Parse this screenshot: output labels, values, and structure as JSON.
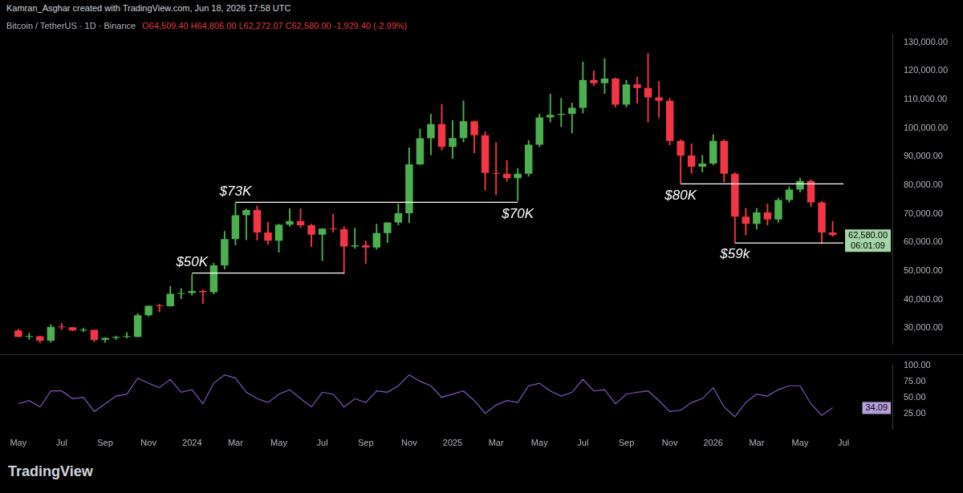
{
  "header": {
    "credit": "Kamran_Asghar created with TradingView.com, Jun 18, 2026 17:58 UTC"
  },
  "brand": "TradingView",
  "chart_data": [
    {
      "type": "candlestick",
      "title": "Bitcoin / TetherUS · 1D · Binance",
      "subtitle": "O64,509.40 H64,806.00 L62,272.07 C62,580.00 -1,929.40 (-2.99%)",
      "categories": [
        "May",
        null,
        null,
        null,
        "Jul",
        null,
        null,
        null,
        "Sep",
        null,
        null,
        null,
        "Nov",
        null,
        null,
        null,
        "2024",
        null,
        null,
        null,
        "Mar",
        null,
        null,
        null,
        "May",
        null,
        null,
        null,
        "Jul",
        null,
        null,
        null,
        "Sep",
        null,
        null,
        null,
        "Nov",
        null,
        null,
        null,
        "2025",
        null,
        null,
        null,
        "Mar",
        null,
        null,
        null,
        "May",
        null,
        null,
        null,
        "Jul",
        null,
        null,
        null,
        "Sep",
        null,
        null,
        null,
        "Nov",
        null,
        null,
        null,
        "2026",
        null,
        null,
        null,
        "Mar",
        null,
        null,
        null,
        "May",
        null,
        null,
        null,
        "Jul",
        null,
        null,
        null,
        null
      ],
      "open": [
        29200,
        27000,
        27200,
        25600,
        30500,
        30300,
        29200,
        29400,
        25900,
        26600,
        27000,
        27000,
        34500,
        37800,
        37700,
        42000,
        42300,
        43000,
        42600,
        52000,
        61200,
        69500,
        71300,
        63500,
        60600,
        66200,
        67500,
        66000,
        62700,
        64800,
        64600,
        58600,
        59000,
        58200,
        63300,
        67000,
        70200,
        87300,
        96400,
        101400,
        93400,
        96500,
        102400,
        97500,
        84300,
        84000,
        82500,
        84000,
        94200,
        103700,
        104600,
        105000,
        107100,
        116800,
        115700,
        117300,
        108200,
        115300,
        114000,
        110700,
        109500,
        95500,
        90400,
        86500,
        87600,
        95500,
        84000,
        69000,
        66500,
        70500,
        68000,
        74800,
        78500,
        81500,
        74000,
        63500,
        null,
        null,
        null,
        null,
        null
      ],
      "high": [
        29800,
        28400,
        27400,
        31400,
        31800,
        30400,
        30200,
        29500,
        26800,
        27400,
        28600,
        35200,
        38000,
        38500,
        44700,
        44000,
        48900,
        43500,
        52800,
        64000,
        73800,
        71800,
        72800,
        67200,
        66500,
        71900,
        71900,
        66500,
        65000,
        70000,
        65600,
        65000,
        60600,
        66500,
        67000,
        73600,
        93200,
        99800,
        105000,
        108300,
        102700,
        109600,
        102500,
        98800,
        95000,
        88800,
        86000,
        95700,
        105000,
        112000,
        110500,
        108800,
        123200,
        120200,
        124400,
        117600,
        116800,
        117900,
        126200,
        116400,
        110500,
        96000,
        94600,
        90500,
        97800,
        96000,
        84500,
        72000,
        72000,
        73500,
        75500,
        79500,
        82600,
        82000,
        74500,
        67500,
        null,
        null,
        null,
        null,
        null
      ],
      "low": [
        26800,
        26000,
        24800,
        25000,
        29500,
        29000,
        28700,
        25200,
        24900,
        26000,
        26500,
        26800,
        34100,
        35600,
        37600,
        40200,
        41500,
        38500,
        41900,
        50600,
        59000,
        60800,
        60700,
        59200,
        56500,
        65500,
        65000,
        58400,
        53500,
        63500,
        49000,
        57800,
        52500,
        57500,
        59800,
        66000,
        66800,
        87000,
        90500,
        92200,
        89200,
        95000,
        91200,
        78200,
        76600,
        81200,
        74500,
        83000,
        93300,
        102000,
        100400,
        98200,
        105100,
        114700,
        112000,
        107300,
        107300,
        108600,
        102000,
        103500,
        94000,
        80600,
        84000,
        84500,
        87000,
        81000,
        59800,
        62500,
        64500,
        66000,
        67000,
        74000,
        77500,
        72500,
        59500,
        62000,
        null,
        null,
        null,
        null,
        null
      ],
      "close": [
        27000,
        27200,
        25600,
        30500,
        30300,
        29200,
        29400,
        25900,
        26600,
        27000,
        27000,
        34500,
        37800,
        37700,
        42000,
        42300,
        43000,
        42600,
        52000,
        61200,
        69500,
        71300,
        63500,
        60600,
        66200,
        67500,
        66000,
        62700,
        64800,
        64600,
        58600,
        59000,
        58200,
        63300,
        67000,
        70200,
        87300,
        96400,
        101400,
        93400,
        96500,
        102400,
        97500,
        84300,
        84000,
        82500,
        84000,
        94200,
        103700,
        104600,
        105000,
        107100,
        116800,
        115700,
        117300,
        108200,
        115300,
        114000,
        110700,
        109500,
        95500,
        90400,
        86500,
        87600,
        95500,
        84000,
        69000,
        66500,
        70500,
        68000,
        74800,
        78500,
        81500,
        74000,
        63500,
        62580,
        null,
        null,
        null,
        null,
        null
      ],
      "colors": [
        "#f23645",
        "#4caf50",
        "#f23645",
        "#4caf50",
        "#f23645",
        "#f23645",
        "#4caf50",
        "#f23645",
        "#4caf50",
        "#4caf50",
        "#4caf50",
        "#4caf50",
        "#4caf50",
        "#f23645",
        "#4caf50",
        "#4caf50",
        "#4caf50",
        "#f23645",
        "#4caf50",
        "#4caf50",
        "#4caf50",
        "#4caf50",
        "#f23645",
        "#f23645",
        "#4caf50",
        "#4caf50",
        "#f23645",
        "#f23645",
        "#4caf50",
        "#f23645",
        "#f23645",
        "#4caf50",
        "#f23645",
        "#4caf50",
        "#4caf50",
        "#4caf50",
        "#4caf50",
        "#4caf50",
        "#4caf50",
        "#f23645",
        "#4caf50",
        "#4caf50",
        "#f23645",
        "#f23645",
        "#f23645",
        "#f23645",
        "#4caf50",
        "#4caf50",
        "#4caf50",
        "#4caf50",
        "#4caf50",
        "#4caf50",
        "#4caf50",
        "#f23645",
        "#4caf50",
        "#f23645",
        "#4caf50",
        "#f23645",
        "#f23645",
        "#f23645",
        "#f23645",
        "#f23645",
        "#f23645",
        "#4caf50",
        "#4caf50",
        "#f23645",
        "#f23645",
        "#f23645",
        "#4caf50",
        "#f23645",
        "#4caf50",
        "#4caf50",
        "#4caf50",
        "#f23645",
        "#f23645",
        "#f23645",
        null,
        null,
        null,
        null,
        null
      ],
      "ylim": [
        24400,
        133000
      ],
      "yticks": [
        {
          "value": 30000,
          "label": "30,000.00"
        },
        {
          "value": 40000,
          "label": "40,000.00"
        },
        {
          "value": 50000,
          "label": "50,000.00"
        },
        {
          "value": 60000,
          "label": "60,000.00"
        },
        {
          "value": 70000,
          "label": "70,000.00"
        },
        {
          "value": 80000,
          "label": "80,000.00"
        },
        {
          "value": 90000,
          "label": "90,000.00"
        },
        {
          "value": 100000,
          "label": "100,000.00"
        },
        {
          "value": 110000,
          "label": "110,000.00"
        },
        {
          "value": 120000,
          "label": "120,000.00"
        },
        {
          "value": 130000,
          "label": "130,000.00"
        }
      ],
      "grid": false,
      "tick_labels": "y",
      "lines": [
        {
          "y": 49300,
          "x": [
            16,
            30
          ]
        },
        {
          "y": 74000,
          "x": [
            20,
            46
          ]
        },
        {
          "y": 80500,
          "x": [
            61,
            76
          ]
        },
        {
          "y": 59800,
          "x": [
            66,
            76
          ]
        }
      ],
      "annotations": [
        {
          "text": "$50K",
          "x": 16,
          "y": 49300
        },
        {
          "text": "$73K",
          "x": 20,
          "y": 74000
        },
        {
          "text": "$70K",
          "x": 46,
          "y": 74000
        },
        {
          "text": "$80K",
          "x": 61,
          "y": 80500
        },
        {
          "text": "$59k",
          "x": 66,
          "y": 59800
        }
      ],
      "last_price": {
        "value": 62580,
        "label": "62,580.00",
        "countdown": "06:01:09"
      }
    },
    {
      "type": "line",
      "categories": [
        "May",
        null,
        null,
        null,
        "Jul",
        null,
        null,
        null,
        "Sep",
        null,
        null,
        null,
        "Nov",
        null,
        null,
        null,
        "2024",
        null,
        null,
        null,
        "Mar",
        null,
        null,
        null,
        "May",
        null,
        null,
        null,
        "Jul",
        null,
        null,
        null,
        "Sep",
        null,
        null,
        null,
        "Nov",
        null,
        null,
        null,
        "2025",
        null,
        null,
        null,
        "Mar",
        null,
        null,
        null,
        "May",
        null,
        null,
        null,
        "Jul",
        null,
        null,
        null,
        "Sep",
        null,
        null,
        null,
        "Nov",
        null,
        null,
        null,
        "2026",
        null,
        null,
        null,
        "Mar",
        null,
        null,
        null,
        "May",
        null,
        null,
        null,
        "Jul",
        null,
        null,
        null,
        null
      ],
      "values": [
        40,
        45,
        35,
        60,
        60,
        48,
        50,
        28,
        40,
        52,
        55,
        80,
        72,
        65,
        78,
        58,
        62,
        40,
        72,
        85,
        80,
        58,
        48,
        42,
        55,
        62,
        48,
        35,
        58,
        55,
        35,
        48,
        42,
        60,
        58,
        68,
        85,
        75,
        68,
        50,
        55,
        60,
        45,
        25,
        38,
        45,
        42,
        68,
        72,
        60,
        52,
        58,
        78,
        60,
        62,
        40,
        55,
        58,
        60,
        45,
        28,
        30,
        42,
        48,
        65,
        35,
        20,
        42,
        55,
        52,
        62,
        68,
        68,
        40,
        22,
        34.09,
        null,
        null,
        null,
        null,
        null
      ],
      "color": "#7e57c2",
      "ylim": [
        0,
        100
      ],
      "yticks": [
        {
          "value": 25,
          "label": "25.00"
        },
        {
          "value": 50,
          "label": "50.00"
        },
        {
          "value": 75,
          "label": "75.00"
        },
        {
          "value": 100,
          "label": "100.00"
        }
      ],
      "grid": false
    }
  ]
}
